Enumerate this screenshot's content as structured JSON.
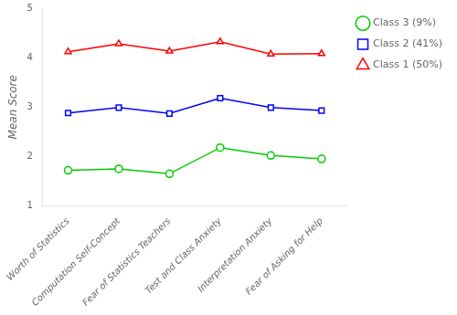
{
  "chart_data": {
    "type": "line",
    "categories": [
      "Worth of Statistics",
      "Computation Self-Concept",
      "Fear of Statistics Teachers",
      "Test and Class Anxiety",
      "Interpretation Anxiety",
      "Fear of Asking for Help"
    ],
    "series": [
      {
        "name": "Class 3 (9%)",
        "color": "#00CC00",
        "marker": "circle",
        "values": [
          1.72,
          1.75,
          1.65,
          2.18,
          2.02,
          1.95
        ]
      },
      {
        "name": "Class 2 (41%)",
        "color": "#0000FF",
        "marker": "square",
        "values": [
          2.88,
          2.99,
          2.87,
          3.18,
          2.99,
          2.93
        ]
      },
      {
        "name": "Class 1 (50%)",
        "color": "#FF0000",
        "marker": "triangle",
        "values": [
          4.12,
          4.28,
          4.13,
          4.32,
          4.07,
          4.08
        ]
      }
    ],
    "ylabel": "Mean Score",
    "ylim": [
      1,
      5
    ],
    "yticks": [
      1,
      2,
      3,
      4,
      5
    ],
    "grid": false,
    "legend": "right"
  }
}
